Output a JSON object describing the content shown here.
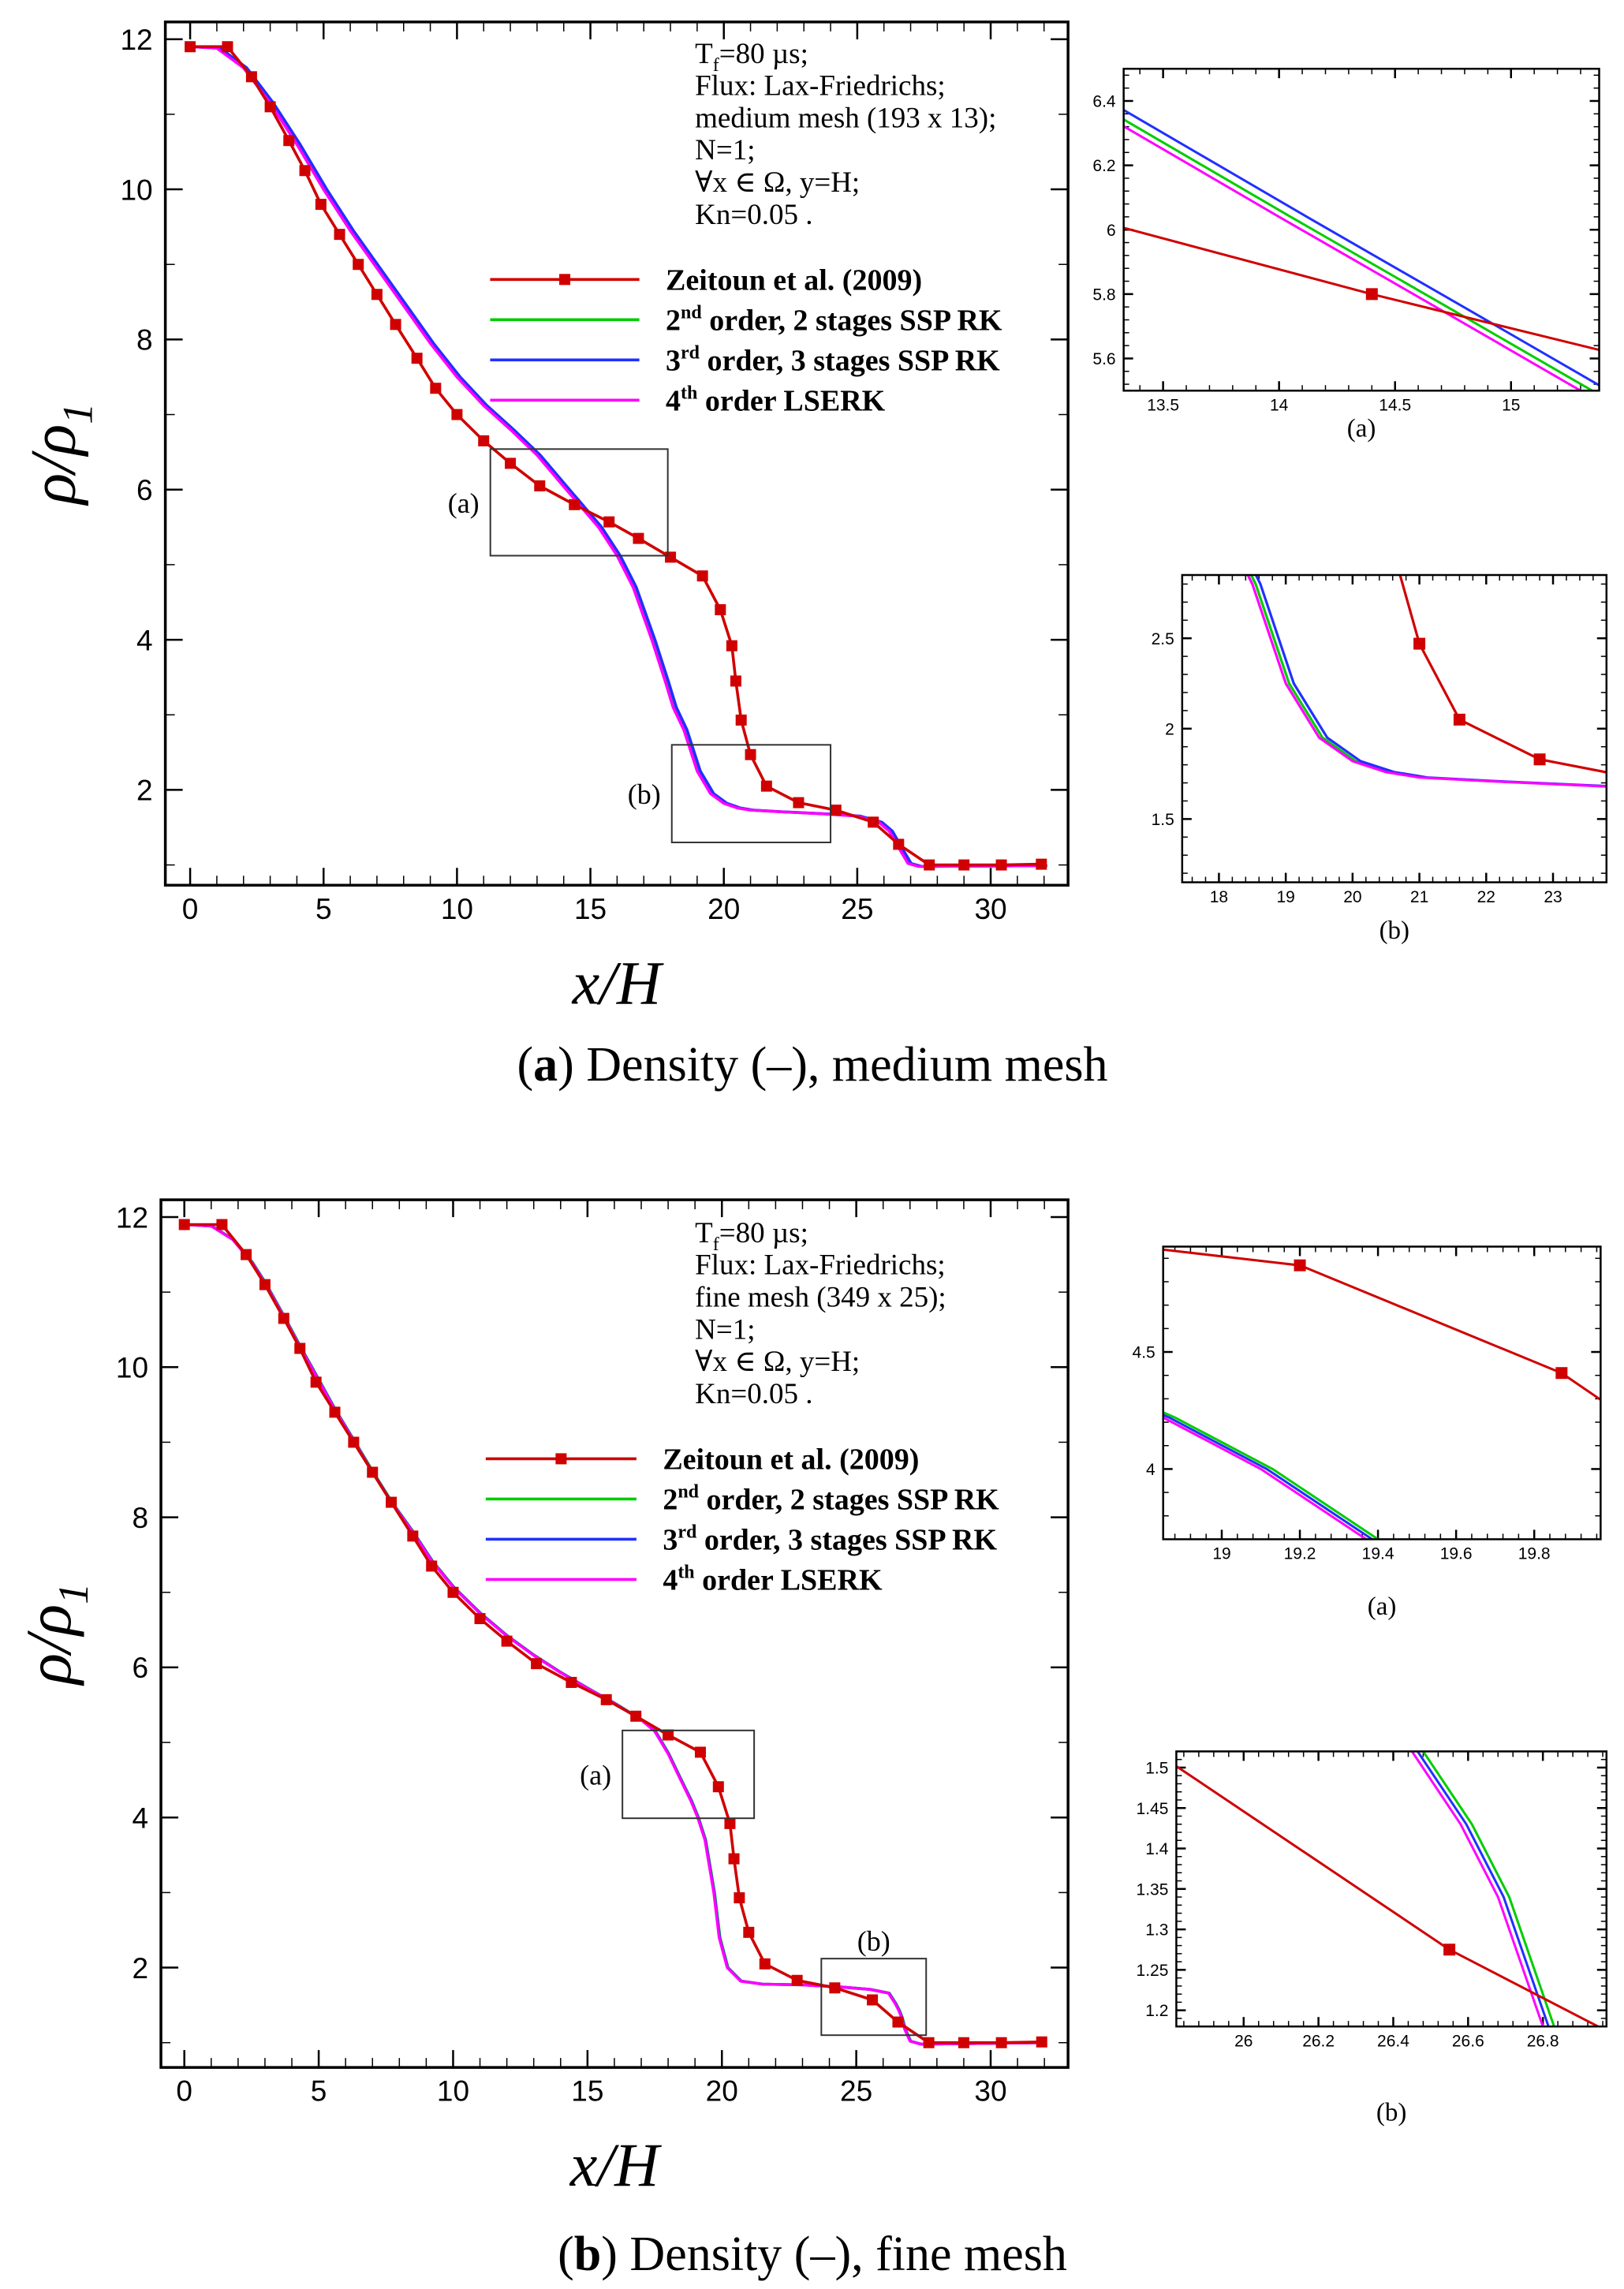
{
  "captions": [
    {
      "open": "(",
      "letter": "a",
      "rest": ") Density (–), medium mesh"
    },
    {
      "open": "(",
      "letter": "b",
      "rest": ") Density (–), fine mesh"
    }
  ],
  "colors": {
    "zeitoun": "#d00000",
    "ssp2": "#00cc00",
    "ssp3": "#2030ff",
    "lserk4": "#ff00ff",
    "axis": "#000000"
  },
  "chart_data": [
    {
      "type": "line",
      "name": "medium-mesh",
      "xlabel": "x/H",
      "ylabel": {
        "base": "ρ/ρ",
        "sub": "1"
      },
      "xlim": [
        -0.93,
        32.9
      ],
      "ylim": [
        0.73,
        12.23
      ],
      "xticks": [
        0,
        5,
        10,
        15,
        20,
        25,
        30
      ],
      "yticks": [
        2,
        4,
        6,
        8,
        10,
        12
      ],
      "xtick_labels": [
        "0",
        "5",
        "10",
        "15",
        "20",
        "25",
        "30"
      ],
      "ytick_labels": [
        "2",
        "4",
        "6",
        "8",
        "10",
        "12"
      ],
      "annotation": [
        {
          "pre": "T",
          "sub": "f",
          "post": "=80  µs;"
        },
        {
          "pre": "Flux: Lax-Friedrichs;"
        },
        {
          "pre": "medium mesh (193 x 13);"
        },
        {
          "pre": "N=1;"
        },
        {
          "pre": "∀x ∈ Ω, y=H;"
        },
        {
          "pre": "Kn=0.05 ."
        }
      ],
      "legend": [
        {
          "base": "Zeitoun et al. (2009)",
          "sup": "",
          "rest": "",
          "series": "zeitoun"
        },
        {
          "base": "2",
          "sup": "nd",
          "rest": " order, 2 stages SSP RK",
          "series": "ssp2"
        },
        {
          "base": "3",
          "sup": "rd",
          "rest": " order, 3 stages SSP RK",
          "series": "ssp3"
        },
        {
          "base": "4",
          "sup": "th",
          "rest": " order LSERK",
          "series": "lserk4"
        }
      ],
      "zoom_boxes": [
        {
          "label": "(a)",
          "x": [
            11.25,
            17.9
          ],
          "y": [
            5.12,
            6.54
          ],
          "label_side": "left"
        },
        {
          "label": "(b)",
          "x": [
            18.05,
            24.0
          ],
          "y": [
            1.3,
            2.6
          ],
          "label_side": "left"
        }
      ],
      "series": {
        "zeitoun": [
          [
            0,
            11.9
          ],
          [
            1.4,
            11.9
          ],
          [
            2.3,
            11.5
          ],
          [
            3,
            11.1
          ],
          [
            3.7,
            10.65
          ],
          [
            4.3,
            10.25
          ],
          [
            4.9,
            9.8
          ],
          [
            5.6,
            9.4
          ],
          [
            6.3,
            9
          ],
          [
            7,
            8.6
          ],
          [
            7.7,
            8.2
          ],
          [
            8.5,
            7.75
          ],
          [
            9.2,
            7.35
          ],
          [
            10,
            7
          ],
          [
            11,
            6.65
          ],
          [
            12,
            6.35
          ],
          [
            13.1,
            6.05
          ],
          [
            14.4,
            5.8
          ],
          [
            15.7,
            5.57
          ],
          [
            16.8,
            5.35
          ],
          [
            18,
            5.1
          ],
          [
            19.2,
            4.85
          ],
          [
            19.87,
            4.4
          ],
          [
            20.3,
            3.92
          ],
          [
            20.45,
            3.45
          ],
          [
            20.65,
            2.93
          ],
          [
            21,
            2.47
          ],
          [
            21.6,
            2.05
          ],
          [
            22.8,
            1.83
          ],
          [
            24.2,
            1.73
          ],
          [
            25.6,
            1.57
          ],
          [
            26.55,
            1.275
          ],
          [
            27.7,
            1.0
          ],
          [
            29,
            1.0
          ],
          [
            30.4,
            1.0
          ],
          [
            31.9,
            1.01
          ]
        ],
        "lserk4": [
          [
            0,
            11.9
          ],
          [
            1,
            11.88
          ],
          [
            2,
            11.62
          ],
          [
            3,
            11.15
          ],
          [
            4,
            10.6
          ],
          [
            5,
            10.0
          ],
          [
            6,
            9.45
          ],
          [
            7,
            8.95
          ],
          [
            8,
            8.45
          ],
          [
            9,
            7.95
          ],
          [
            10,
            7.5
          ],
          [
            11,
            7.12
          ],
          [
            12,
            6.8
          ],
          [
            13,
            6.46
          ],
          [
            14,
            6.04
          ],
          [
            14.7,
            5.75
          ],
          [
            15.3,
            5.5
          ],
          [
            16,
            5.12
          ],
          [
            16.6,
            4.7
          ],
          [
            17.3,
            4.0
          ],
          [
            17.8,
            3.45
          ],
          [
            18.1,
            3.1
          ],
          [
            18.5,
            2.8
          ],
          [
            19,
            2.25
          ],
          [
            19.5,
            1.95
          ],
          [
            20,
            1.82
          ],
          [
            20.5,
            1.76
          ],
          [
            21,
            1.73
          ],
          [
            22,
            1.71
          ],
          [
            23.8,
            1.68
          ],
          [
            25,
            1.65
          ],
          [
            25.8,
            1.57
          ],
          [
            26.2,
            1.45
          ],
          [
            26.6,
            1.2
          ],
          [
            26.9,
            1.02
          ],
          [
            27.3,
            0.98
          ],
          [
            32,
            0.99
          ]
        ],
        "ssp2_x_shift": 0.05,
        "ssp3_x_shift": 0.12
      }
    },
    {
      "type": "line",
      "name": "medium-inset-a",
      "zoom_of": 0,
      "caption": "(a)",
      "xlim": [
        13.33,
        15.38
      ],
      "ylim": [
        5.5,
        6.5
      ],
      "xticks": [
        13.5,
        14,
        14.5,
        15
      ],
      "yticks": [
        5.6,
        5.8,
        6,
        6.2,
        6.4
      ],
      "xtick_labels": [
        "13.5",
        "14",
        "14.5",
        "15"
      ],
      "ytick_labels": [
        "5.6",
        "5.8",
        "6",
        "6.2",
        "6.4"
      ]
    },
    {
      "type": "line",
      "name": "medium-inset-b",
      "zoom_of": 0,
      "caption": "(b)",
      "xlim": [
        17.45,
        23.8
      ],
      "ylim": [
        1.15,
        2.85
      ],
      "xticks": [
        18,
        19,
        20,
        21,
        22,
        23
      ],
      "yticks": [
        1.5,
        2,
        2.5
      ],
      "xtick_labels": [
        "18",
        "19",
        "20",
        "21",
        "22",
        "23"
      ],
      "ytick_labels": [
        "1.5",
        "2",
        "2.5"
      ]
    },
    {
      "type": "line",
      "name": "fine-mesh",
      "xlabel": "x/H",
      "ylabel": {
        "base": "ρ/ρ",
        "sub": "1"
      },
      "xlim": [
        -0.87,
        32.88
      ],
      "ylim": [
        0.67,
        12.23
      ],
      "xticks": [
        0,
        5,
        10,
        15,
        20,
        25,
        30
      ],
      "yticks": [
        2,
        4,
        6,
        8,
        10,
        12
      ],
      "xtick_labels": [
        "0",
        "5",
        "10",
        "15",
        "20",
        "25",
        "30"
      ],
      "ytick_labels": [
        "2",
        "4",
        "6",
        "8",
        "10",
        "12"
      ],
      "annotation": [
        {
          "pre": "T",
          "sub": "f",
          "post": "=80  µs;"
        },
        {
          "pre": "Flux: Lax-Friedrichs;"
        },
        {
          "pre": "fine mesh (349 x 25);"
        },
        {
          "pre": "N=1;"
        },
        {
          "pre": "∀x ∈ Ω, y=H;"
        },
        {
          "pre": "Kn=0.05 ."
        }
      ],
      "legend": [
        {
          "base": "Zeitoun et al. (2009)",
          "sup": "",
          "rest": "",
          "series": "zeitoun"
        },
        {
          "base": "2",
          "sup": "nd",
          "rest": " order, 2 stages SSP RK",
          "series": "ssp2"
        },
        {
          "base": "3",
          "sup": "rd",
          "rest": " order, 3 stages SSP RK",
          "series": "ssp3"
        },
        {
          "base": "4",
          "sup": "th",
          "rest": " order LSERK",
          "series": "lserk4"
        }
      ],
      "zoom_boxes": [
        {
          "label": "(a)",
          "x": [
            16.3,
            21.2
          ],
          "y": [
            3.99,
            5.16
          ],
          "label_side": "left"
        },
        {
          "label": "(b)",
          "x": [
            23.7,
            27.6
          ],
          "y": [
            1.1,
            2.12
          ],
          "label_side": "top"
        }
      ],
      "series": {
        "zeitoun": [
          [
            0,
            11.9
          ],
          [
            1.4,
            11.9
          ],
          [
            2.3,
            11.5
          ],
          [
            3,
            11.1
          ],
          [
            3.7,
            10.65
          ],
          [
            4.3,
            10.25
          ],
          [
            4.9,
            9.8
          ],
          [
            5.6,
            9.4
          ],
          [
            6.3,
            9
          ],
          [
            7,
            8.6
          ],
          [
            7.7,
            8.2
          ],
          [
            8.5,
            7.75
          ],
          [
            9.2,
            7.35
          ],
          [
            10,
            7
          ],
          [
            11,
            6.65
          ],
          [
            12,
            6.35
          ],
          [
            13.1,
            6.05
          ],
          [
            14.4,
            5.8
          ],
          [
            15.7,
            5.57
          ],
          [
            16.8,
            5.35
          ],
          [
            18,
            5.1
          ],
          [
            19.2,
            4.87
          ],
          [
            19.87,
            4.41
          ],
          [
            20.3,
            3.92
          ],
          [
            20.45,
            3.45
          ],
          [
            20.65,
            2.93
          ],
          [
            21,
            2.47
          ],
          [
            21.6,
            2.05
          ],
          [
            22.8,
            1.83
          ],
          [
            24.2,
            1.73
          ],
          [
            25.6,
            1.57
          ],
          [
            26.55,
            1.275
          ],
          [
            27.7,
            1.0
          ],
          [
            29,
            1.0
          ],
          [
            30.4,
            1.0
          ],
          [
            31.9,
            1.01
          ]
        ],
        "lserk4": [
          [
            0,
            11.9
          ],
          [
            1,
            11.88
          ],
          [
            1.8,
            11.7
          ],
          [
            2.5,
            11.4
          ],
          [
            3,
            11.12
          ],
          [
            3.7,
            10.67
          ],
          [
            4.3,
            10.27
          ],
          [
            5,
            9.82
          ],
          [
            5.6,
            9.43
          ],
          [
            6.3,
            9.02
          ],
          [
            7,
            8.6
          ],
          [
            7.7,
            8.2
          ],
          [
            8.5,
            7.8
          ],
          [
            9.2,
            7.42
          ],
          [
            10,
            7.07
          ],
          [
            11,
            6.72
          ],
          [
            12,
            6.42
          ],
          [
            13,
            6.16
          ],
          [
            14,
            5.93
          ],
          [
            15,
            5.72
          ],
          [
            16,
            5.52
          ],
          [
            17,
            5.3
          ],
          [
            17.5,
            5.15
          ],
          [
            18.0,
            4.85
          ],
          [
            18.4,
            4.55
          ],
          [
            18.85,
            4.22
          ],
          [
            19.1,
            4.0
          ],
          [
            19.37,
            3.7
          ],
          [
            19.7,
            3.0
          ],
          [
            19.9,
            2.4
          ],
          [
            20.2,
            2.0
          ],
          [
            20.7,
            1.82
          ],
          [
            21.5,
            1.78
          ],
          [
            23,
            1.77
          ],
          [
            24.5,
            1.74
          ],
          [
            25.5,
            1.71
          ],
          [
            26.2,
            1.66
          ],
          [
            26.45,
            1.52
          ],
          [
            26.58,
            1.43
          ],
          [
            26.68,
            1.34
          ],
          [
            26.8,
            1.18
          ],
          [
            27,
            1.02
          ],
          [
            27.4,
            0.98
          ],
          [
            32,
            1.0
          ]
        ],
        "ssp2_x_shift": 0.03,
        "ssp3_x_shift": 0.015
      }
    },
    {
      "type": "line",
      "name": "fine-inset-a",
      "zoom_of": 3,
      "caption": "(a)",
      "xlim": [
        18.85,
        19.97
      ],
      "ylim": [
        3.7,
        4.95
      ],
      "xticks": [
        19,
        19.2,
        19.4,
        19.6,
        19.8
      ],
      "yticks": [
        4,
        4.5
      ],
      "xtick_labels": [
        "19",
        "19.2",
        "19.4",
        "19.6",
        "19.8"
      ],
      "ytick_labels": [
        "4",
        "4.5"
      ]
    },
    {
      "type": "line",
      "name": "fine-inset-b",
      "zoom_of": 3,
      "caption": "(b)",
      "xlim": [
        25.82,
        26.97
      ],
      "ylim": [
        1.18,
        1.52
      ],
      "xticks": [
        26,
        26.2,
        26.4,
        26.6,
        26.8
      ],
      "yticks": [
        1.2,
        1.25,
        1.3,
        1.35,
        1.4,
        1.45,
        1.5
      ],
      "xtick_labels": [
        "26",
        "26.2",
        "26.4",
        "26.6",
        "26.8"
      ],
      "ytick_labels": [
        "1.2",
        "1.25",
        "1.3",
        "1.35",
        "1.4",
        "1.45",
        "1.5"
      ]
    }
  ]
}
